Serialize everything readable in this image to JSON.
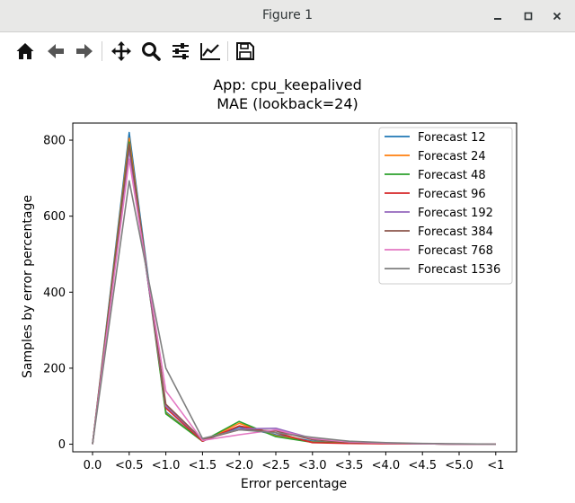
{
  "window": {
    "title": "Figure 1",
    "controls": [
      "minimize-icon",
      "maximize-icon",
      "close-icon"
    ]
  },
  "toolbar": {
    "buttons": [
      "home-icon",
      "back-icon",
      "forward-icon",
      "pan-icon",
      "zoom-icon",
      "configure-subplots-icon",
      "edit-axis-icon",
      "save-icon"
    ]
  },
  "chart_data": {
    "type": "line",
    "title": "App: cpu_keepalived",
    "subtitle": "MAE (lookback=24)",
    "xlabel": "Error percentage",
    "ylabel": "Samples by error percentage",
    "categories": [
      "0.0",
      "<0.5",
      "<1.0",
      "<1.5",
      "<2.0",
      "<2.5",
      "<3.0",
      "<3.5",
      "<4.0",
      "<4.5",
      "<5.0",
      "<1"
    ],
    "yticks": [
      0,
      200,
      400,
      600,
      800
    ],
    "ylim": [
      -20,
      845
    ],
    "legend_position": "upper right",
    "series": [
      {
        "name": "Forecast 12",
        "color": "#1f77b4",
        "values": [
          0,
          820,
          85,
          8,
          45,
          25,
          8,
          3,
          2,
          1,
          0,
          0
        ]
      },
      {
        "name": "Forecast 24",
        "color": "#ff7f0e",
        "values": [
          0,
          805,
          82,
          8,
          55,
          22,
          6,
          3,
          2,
          1,
          0,
          0
        ]
      },
      {
        "name": "Forecast 48",
        "color": "#2ca02c",
        "values": [
          0,
          795,
          80,
          8,
          60,
          20,
          5,
          3,
          2,
          1,
          0,
          0
        ]
      },
      {
        "name": "Forecast 96",
        "color": "#d62728",
        "values": [
          0,
          780,
          95,
          8,
          48,
          30,
          4,
          2,
          1,
          1,
          0,
          0
        ]
      },
      {
        "name": "Forecast 192",
        "color": "#9467bd",
        "values": [
          0,
          775,
          100,
          12,
          40,
          42,
          15,
          5,
          3,
          1,
          0,
          0
        ]
      },
      {
        "name": "Forecast 384",
        "color": "#8c564b",
        "values": [
          0,
          790,
          105,
          12,
          38,
          35,
          12,
          5,
          3,
          1,
          0,
          0
        ]
      },
      {
        "name": "Forecast 768",
        "color": "#e377c2",
        "values": [
          0,
          750,
          140,
          10,
          25,
          38,
          15,
          6,
          3,
          1,
          0,
          0
        ]
      },
      {
        "name": "Forecast 1536",
        "color": "#7f7f7f",
        "values": [
          0,
          693,
          200,
          15,
          38,
          30,
          18,
          8,
          4,
          2,
          1,
          0
        ]
      }
    ]
  }
}
